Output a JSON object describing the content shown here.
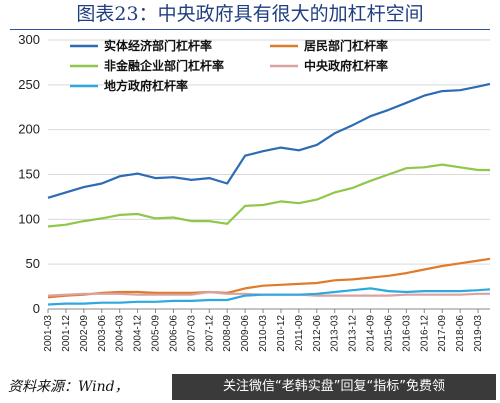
{
  "header": {
    "title": "图表23：中央政府具有很大的加杠杆空间"
  },
  "footer": {
    "source": "资料来源：Wind，",
    "banner": "关注微信“老韩实盘”回复“指标”免费领"
  },
  "chart_data": {
    "type": "line",
    "title": "图表23：中央政府具有很大的加杠杆空间",
    "xlabel": "",
    "ylabel": "",
    "ylim": [
      0,
      300
    ],
    "yticks": [
      0,
      50,
      100,
      150,
      200,
      250,
      300
    ],
    "x_start": "2001-03",
    "x_end": "2019-09",
    "x_ticks": [
      "2001-03",
      "2001-12",
      "2002-09",
      "2003-06",
      "2004-03",
      "2004-12",
      "2005-09",
      "2006-06",
      "2007-03",
      "2007-12",
      "2008-09",
      "2009-06",
      "2010-03",
      "2010-12",
      "2011-09",
      "2012-06",
      "2013-03",
      "2013-12",
      "2014-09",
      "2015-06",
      "2016-03",
      "2016-12",
      "2017-09",
      "2018-06",
      "2019-03"
    ],
    "grid": true,
    "legend_position": "top",
    "series": [
      {
        "name": "实体经济部门杠杆率",
        "color": "#2e6bb5",
        "points": [
          [
            "2001-03",
            124
          ],
          [
            "2001-12",
            130
          ],
          [
            "2002-09",
            136
          ],
          [
            "2003-06",
            140
          ],
          [
            "2004-03",
            148
          ],
          [
            "2004-12",
            151
          ],
          [
            "2005-09",
            146
          ],
          [
            "2006-06",
            147
          ],
          [
            "2007-03",
            144
          ],
          [
            "2007-12",
            146
          ],
          [
            "2008-09",
            140
          ],
          [
            "2009-06",
            171
          ],
          [
            "2010-03",
            176
          ],
          [
            "2010-12",
            180
          ],
          [
            "2011-09",
            177
          ],
          [
            "2012-06",
            183
          ],
          [
            "2013-03",
            196
          ],
          [
            "2013-12",
            205
          ],
          [
            "2014-09",
            215
          ],
          [
            "2015-06",
            222
          ],
          [
            "2016-03",
            230
          ],
          [
            "2016-12",
            238
          ],
          [
            "2017-09",
            243
          ],
          [
            "2018-06",
            244
          ],
          [
            "2019-03",
            248
          ],
          [
            "2019-09",
            251
          ]
        ]
      },
      {
        "name": "居民部门杠杆率",
        "color": "#e07b29",
        "points": [
          [
            "2001-03",
            13
          ],
          [
            "2001-12",
            15
          ],
          [
            "2002-09",
            16
          ],
          [
            "2003-06",
            18
          ],
          [
            "2004-03",
            19
          ],
          [
            "2004-12",
            19
          ],
          [
            "2005-09",
            18
          ],
          [
            "2006-06",
            18
          ],
          [
            "2007-03",
            18
          ],
          [
            "2007-12",
            19
          ],
          [
            "2008-09",
            18
          ],
          [
            "2009-06",
            23
          ],
          [
            "2010-03",
            26
          ],
          [
            "2010-12",
            27
          ],
          [
            "2011-09",
            28
          ],
          [
            "2012-06",
            29
          ],
          [
            "2013-03",
            32
          ],
          [
            "2013-12",
            33
          ],
          [
            "2014-09",
            35
          ],
          [
            "2015-06",
            37
          ],
          [
            "2016-03",
            40
          ],
          [
            "2016-12",
            44
          ],
          [
            "2017-09",
            48
          ],
          [
            "2018-06",
            51
          ],
          [
            "2019-03",
            54
          ],
          [
            "2019-09",
            56
          ]
        ]
      },
      {
        "name": "非金融企业部门杠杆率",
        "color": "#8fc74a",
        "points": [
          [
            "2001-03",
            92
          ],
          [
            "2001-12",
            94
          ],
          [
            "2002-09",
            98
          ],
          [
            "2003-06",
            101
          ],
          [
            "2004-03",
            105
          ],
          [
            "2004-12",
            106
          ],
          [
            "2005-09",
            101
          ],
          [
            "2006-06",
            102
          ],
          [
            "2007-03",
            98
          ],
          [
            "2007-12",
            98
          ],
          [
            "2008-09",
            95
          ],
          [
            "2009-06",
            115
          ],
          [
            "2010-03",
            116
          ],
          [
            "2010-12",
            120
          ],
          [
            "2011-09",
            118
          ],
          [
            "2012-06",
            122
          ],
          [
            "2013-03",
            130
          ],
          [
            "2013-12",
            135
          ],
          [
            "2014-09",
            143
          ],
          [
            "2015-06",
            150
          ],
          [
            "2016-03",
            157
          ],
          [
            "2016-12",
            158
          ],
          [
            "2017-09",
            161
          ],
          [
            "2018-06",
            158
          ],
          [
            "2019-03",
            155
          ],
          [
            "2019-09",
            155
          ]
        ]
      },
      {
        "name": "中央政府杠杆率",
        "color": "#d8a3a3",
        "points": [
          [
            "2001-03",
            15
          ],
          [
            "2001-12",
            16
          ],
          [
            "2002-09",
            17
          ],
          [
            "2003-06",
            17
          ],
          [
            "2004-03",
            17
          ],
          [
            "2004-12",
            16
          ],
          [
            "2005-09",
            16
          ],
          [
            "2006-06",
            16
          ],
          [
            "2007-03",
            16
          ],
          [
            "2007-12",
            19
          ],
          [
            "2008-09",
            17
          ],
          [
            "2009-06",
            17
          ],
          [
            "2010-03",
            16
          ],
          [
            "2010-12",
            16
          ],
          [
            "2011-09",
            16
          ],
          [
            "2012-06",
            15
          ],
          [
            "2013-03",
            15
          ],
          [
            "2013-12",
            15
          ],
          [
            "2014-09",
            15
          ],
          [
            "2015-06",
            15
          ],
          [
            "2016-03",
            16
          ],
          [
            "2016-12",
            16
          ],
          [
            "2017-09",
            16
          ],
          [
            "2018-06",
            16
          ],
          [
            "2019-03",
            17
          ],
          [
            "2019-09",
            17
          ]
        ]
      },
      {
        "name": "地方政府杠杆率",
        "color": "#2ea8e0",
        "points": [
          [
            "2001-03",
            5
          ],
          [
            "2001-12",
            6
          ],
          [
            "2002-09",
            6
          ],
          [
            "2003-06",
            7
          ],
          [
            "2004-03",
            7
          ],
          [
            "2004-12",
            8
          ],
          [
            "2005-09",
            8
          ],
          [
            "2006-06",
            9
          ],
          [
            "2007-03",
            9
          ],
          [
            "2007-12",
            10
          ],
          [
            "2008-09",
            10
          ],
          [
            "2009-06",
            15
          ],
          [
            "2010-03",
            16
          ],
          [
            "2010-12",
            16
          ],
          [
            "2011-09",
            16
          ],
          [
            "2012-06",
            17
          ],
          [
            "2013-03",
            19
          ],
          [
            "2013-12",
            21
          ],
          [
            "2014-09",
            23
          ],
          [
            "2015-06",
            20
          ],
          [
            "2016-03",
            19
          ],
          [
            "2016-12",
            20
          ],
          [
            "2017-09",
            20
          ],
          [
            "2018-06",
            20
          ],
          [
            "2019-03",
            21
          ],
          [
            "2019-09",
            22
          ]
        ]
      }
    ]
  }
}
